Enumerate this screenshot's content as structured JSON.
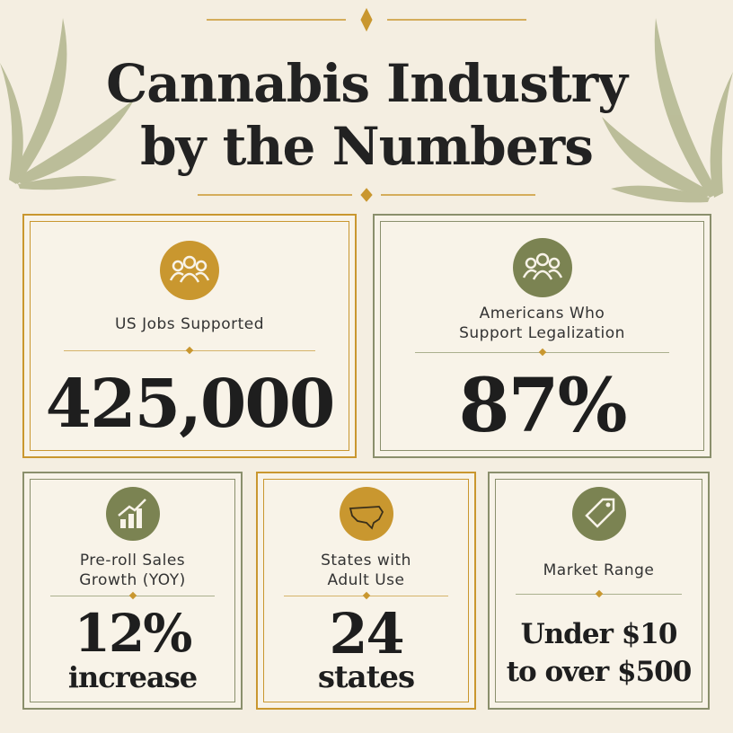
{
  "title_lines": [
    "Cannabis Industry",
    "by the Numbers"
  ],
  "cards": [
    {
      "label_lines": [
        "US Jobs Supported"
      ],
      "value_lines": [
        "425,000"
      ]
    },
    {
      "label_lines": [
        "Americans Who",
        "Support Legalization"
      ],
      "value_lines": [
        "87%"
      ]
    },
    {
      "label_lines": [
        "Pre-roll Sales",
        "Growth (YOY)"
      ],
      "value_lines": [
        "12%",
        "increase"
      ]
    },
    {
      "label_lines": [
        "States with",
        "Adult Use"
      ],
      "value_lines": [
        "24",
        "states"
      ]
    },
    {
      "label_lines": [
        "Market Range"
      ],
      "value_lines": [
        "Under $10",
        "to over $500"
      ]
    }
  ]
}
